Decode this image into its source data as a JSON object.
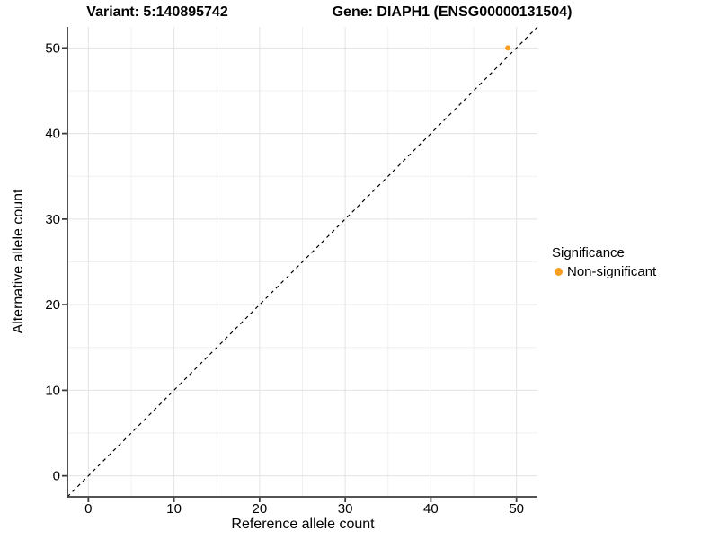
{
  "chart_data": {
    "type": "scatter",
    "title_left": "Variant: 5:140895742",
    "title_right": "Gene: DIAPH1 (ENSG00000131504)",
    "xlabel": "Reference allele count",
    "ylabel": "Alternative allele count",
    "xlim": [
      -2.45,
      52.45
    ],
    "ylim": [
      -2.45,
      52.45
    ],
    "x_ticks": [
      0,
      10,
      20,
      30,
      40,
      50
    ],
    "y_ticks": [
      0,
      10,
      20,
      30,
      40,
      50
    ],
    "minor_ticks": [
      5,
      15,
      25,
      35,
      45
    ],
    "grid": true,
    "points": [
      {
        "x": 49,
        "y": 50,
        "series": "Non-significant"
      }
    ],
    "reference_line": {
      "type": "identity",
      "from": [
        -2.45,
        -2.45
      ],
      "to": [
        52.45,
        52.45
      ],
      "style": "dashed",
      "color": "#000000"
    },
    "legend": {
      "title": "Significance",
      "position": "right",
      "items": [
        {
          "label": "Non-significant",
          "color": "#F89E20"
        }
      ]
    },
    "colors": {
      "point": "#F89E20",
      "grid_major": "#E3E3E3",
      "grid_minor": "#F0F0F0",
      "axis_line": "#3C3C3C",
      "tick_text": "#000000"
    }
  }
}
